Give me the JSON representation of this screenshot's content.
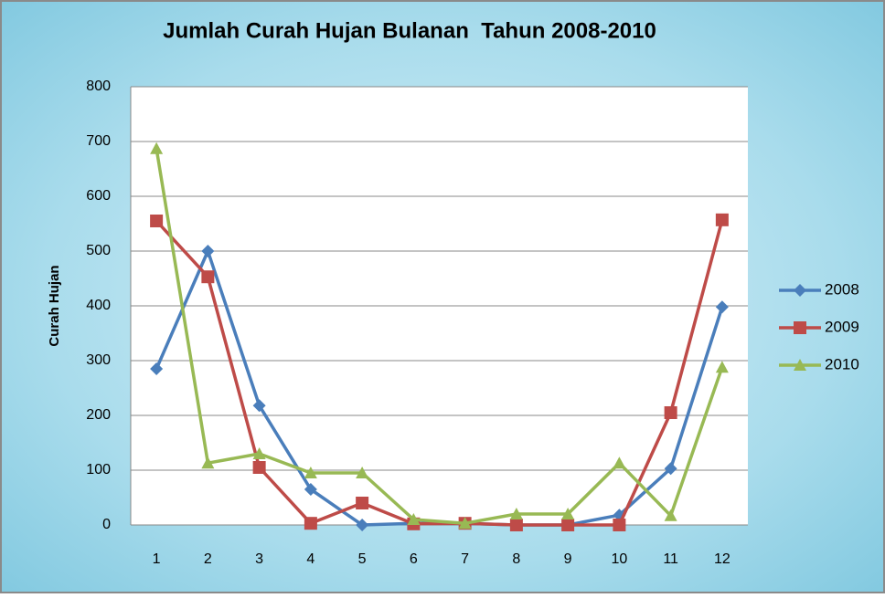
{
  "chart_data": {
    "type": "line",
    "title": "Jumlah Curah Hujan Bulanan  Tahun 2008-2010",
    "y_label": "Curah Hujan",
    "categories": [
      "1",
      "2",
      "3",
      "4",
      "5",
      "6",
      "7",
      "8",
      "9",
      "10",
      "11",
      "12"
    ],
    "series": [
      {
        "name": "2008",
        "color": "#4a7ebb",
        "marker": "diamond",
        "values": [
          285,
          500,
          218,
          65,
          0,
          3,
          3,
          0,
          0,
          18,
          103,
          398
        ]
      },
      {
        "name": "2009",
        "color": "#be4b48",
        "marker": "square",
        "values": [
          555,
          453,
          105,
          3,
          40,
          2,
          3,
          0,
          0,
          0,
          205,
          557
        ]
      },
      {
        "name": "2010",
        "color": "#98b954",
        "marker": "triangle",
        "values": [
          687,
          113,
          130,
          95,
          95,
          10,
          3,
          20,
          20,
          113,
          17,
          288
        ]
      }
    ],
    "ylim": [
      0,
      800
    ],
    "yticks": [
      0,
      100,
      200,
      300,
      400,
      500,
      600,
      700,
      800
    ],
    "grid": true,
    "legend": "right"
  }
}
